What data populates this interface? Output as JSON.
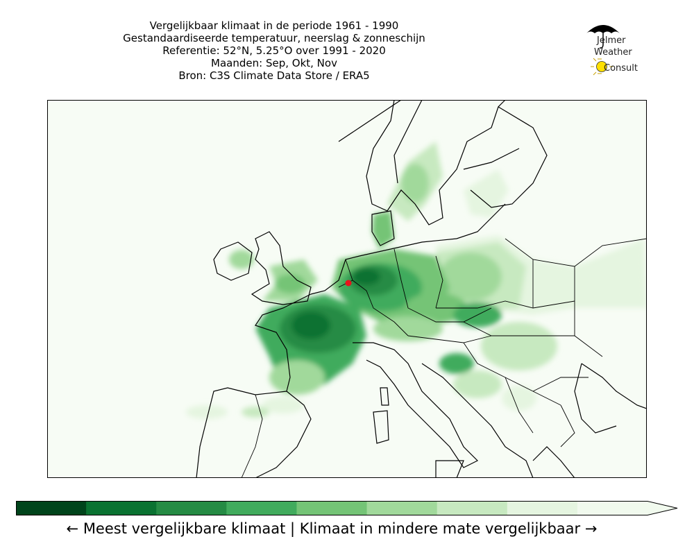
{
  "title": {
    "line1": "Vergelijkbaar klimaat in de periode 1961 - 1990",
    "line2": "Gestandaardiseerde temperatuur, neerslag & zonneschijn",
    "line3": "Referentie: 52°N, 5.25°O over 1991 - 2020",
    "line4": "Maanden: Sep, Okt, Nov",
    "line5": "Bron: C3S Climate Data Store / ERA5"
  },
  "logo": {
    "line1": "Jelmer",
    "line2": "Weather",
    "line3": "Consult"
  },
  "map": {
    "region": "Europe",
    "reference_point": {
      "lat": 52,
      "lon": 5.25,
      "color": "#e8141c"
    },
    "land_color": "#f7fcf5",
    "border_color": "#000000"
  },
  "colorbar": {
    "colors": [
      "#00441b",
      "#0a7231",
      "#258b44",
      "#41ab5d",
      "#74c476",
      "#a1d99b",
      "#c7e9c0",
      "#e5f5e0",
      "#f1faee"
    ],
    "extend": "max"
  },
  "caption": "← Meest vergelijkbare klimaat  |  Klimaat in mindere mate vergelijkbaar →"
}
